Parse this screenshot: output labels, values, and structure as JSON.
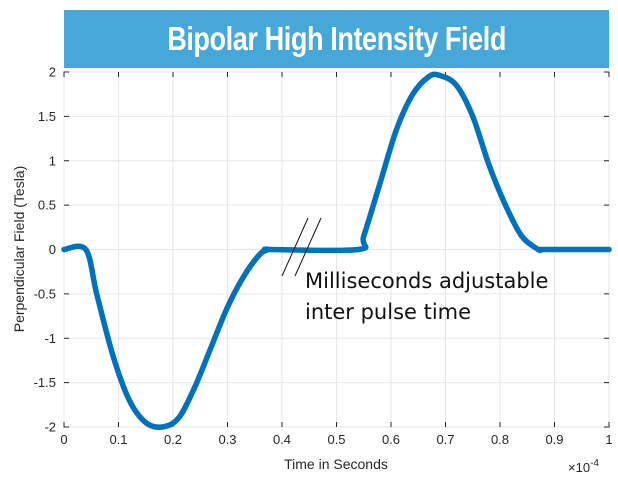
{
  "chart_data": {
    "type": "line",
    "title": "Bipolar High Intensity Field",
    "xlabel": "Time in Seconds",
    "ylabel": "Perpendicular Field (Tesla)",
    "x_exponent_label": "×10",
    "x_exponent_power": "-4",
    "xlim": [
      0,
      1
    ],
    "ylim": [
      -2,
      2
    ],
    "xticks": [
      "0",
      "0.1",
      "0.2",
      "0.3",
      "0.4",
      "0.5",
      "0.6",
      "0.7",
      "0.8",
      "0.9",
      "1"
    ],
    "yticks": [
      "2",
      "1.5",
      "1",
      "0.5",
      "0",
      "-0.5",
      "-1",
      "-1.5",
      "-2"
    ],
    "grid": true,
    "annotation": [
      "Milliseconds adjustable",
      "inter pulse time"
    ],
    "series": [
      {
        "color": "#0072bd",
        "x": [
          0,
          0.04,
          0.06,
          0.09,
          0.12,
          0.15,
          0.18,
          0.21,
          0.24,
          0.27,
          0.3,
          0.33,
          0.36,
          0.376,
          0.38,
          0.54,
          0.55,
          0.58,
          0.61,
          0.64,
          0.67,
          0.69,
          0.72,
          0.75,
          0.78,
          0.81,
          0.84,
          0.87,
          0.875,
          0.88,
          1.0
        ],
        "y": [
          0,
          0,
          -0.5,
          -1.2,
          -1.7,
          -1.95,
          -2.0,
          -1.9,
          -1.55,
          -1.1,
          -0.65,
          -0.3,
          -0.05,
          0,
          0,
          0,
          0.15,
          0.75,
          1.35,
          1.75,
          1.95,
          1.96,
          1.85,
          1.5,
          0.95,
          0.5,
          0.15,
          0.0,
          0,
          0,
          0
        ]
      }
    ]
  },
  "colors": {
    "banner": "#46a8d8",
    "line": "#0072bd",
    "grid": "#e6e6e6",
    "axis": "#262626"
  }
}
